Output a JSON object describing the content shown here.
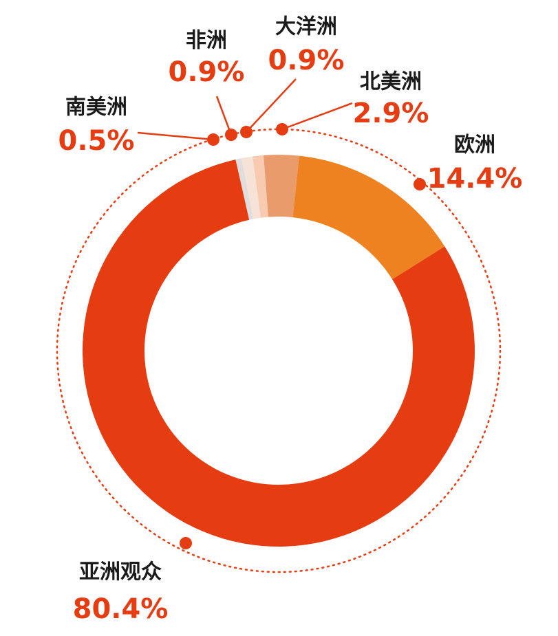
{
  "chart_data": {
    "type": "donut",
    "categories": [
      "南美洲",
      "非洲",
      "大洋洲",
      "北美洲",
      "欧洲",
      "亚洲观众"
    ],
    "values": [
      0.5,
      0.9,
      0.9,
      2.9,
      14.4,
      80.4
    ],
    "value_labels": [
      "0.5%",
      "0.9%",
      "0.9%",
      "2.9%",
      "14.4%",
      "80.4%"
    ],
    "colors": [
      "#e0dddc",
      "#f7e2d7",
      "#f8cbb0",
      "#ea9b6c",
      "#ee8220",
      "#e63c12"
    ]
  }
}
